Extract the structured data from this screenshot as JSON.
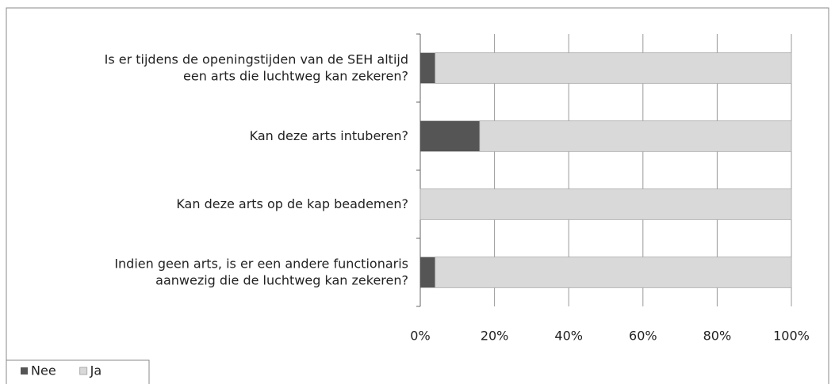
{
  "chart_data": {
    "type": "bar",
    "orientation": "horizontal",
    "stacked": true,
    "categories": [
      "Is er tijdens de openingstijden van de SEH altijd\neen arts die luchtweg kan zekeren?",
      "Kan deze arts intuberen?",
      "Kan deze arts op de kap beademen?",
      "Indien geen arts, is er een andere functionaris\naanwezig die de luchtweg kan zekeren?"
    ],
    "series": [
      {
        "name": "Nee",
        "color": "#555555",
        "values": [
          4,
          16,
          0,
          4
        ]
      },
      {
        "name": "Ja",
        "color": "#d9d9d9",
        "values": [
          96,
          84,
          100,
          96
        ]
      }
    ],
    "xlim": [
      0,
      100
    ],
    "xticks": [
      {
        "value": 0,
        "label": "0%"
      },
      {
        "value": 20,
        "label": "20%"
      },
      {
        "value": 40,
        "label": "40%"
      },
      {
        "value": 60,
        "label": "60%"
      },
      {
        "value": 80,
        "label": "80%"
      },
      {
        "value": 100,
        "label": "100%"
      }
    ],
    "grid": true,
    "legend": "bottom-left"
  }
}
